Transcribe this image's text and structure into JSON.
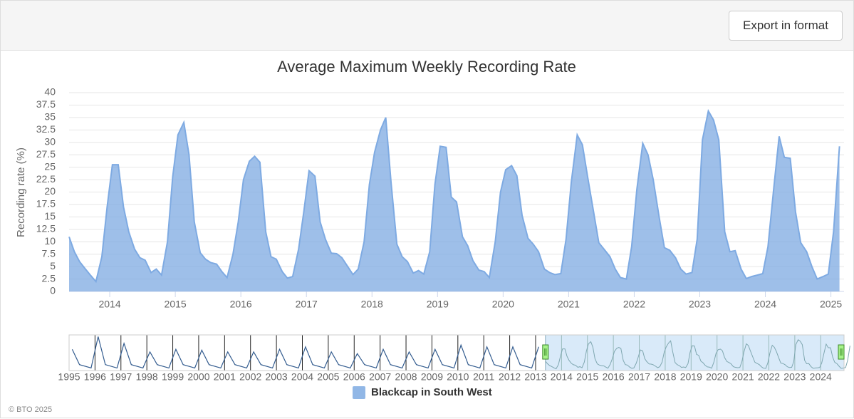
{
  "toolbar": {
    "button": "Export in format"
  },
  "chart_data": [
    {
      "type": "area",
      "title": "Average Maximum Weekly Recording Rate",
      "y_label": "Recording rate (%)",
      "x": [
        2013.38,
        2013.46,
        2013.54,
        2013.63,
        2013.71,
        2013.79,
        2013.88,
        2013.96,
        2014.04,
        2014.13,
        2014.21,
        2014.29,
        2014.38,
        2014.46,
        2014.54,
        2014.63,
        2014.71,
        2014.79,
        2014.88,
        2014.96,
        2015.04,
        2015.13,
        2015.21,
        2015.29,
        2015.38,
        2015.46,
        2015.54,
        2015.63,
        2015.71,
        2015.79,
        2015.88,
        2015.96,
        2016.04,
        2016.13,
        2016.21,
        2016.29,
        2016.38,
        2016.46,
        2016.54,
        2016.63,
        2016.71,
        2016.79,
        2016.88,
        2016.96,
        2017.04,
        2017.13,
        2017.21,
        2017.29,
        2017.38,
        2017.46,
        2017.54,
        2017.63,
        2017.71,
        2017.79,
        2017.88,
        2017.96,
        2018.04,
        2018.13,
        2018.21,
        2018.29,
        2018.38,
        2018.46,
        2018.54,
        2018.63,
        2018.71,
        2018.79,
        2018.88,
        2018.96,
        2019.04,
        2019.13,
        2019.21,
        2019.29,
        2019.38,
        2019.46,
        2019.54,
        2019.63,
        2019.71,
        2019.79,
        2019.88,
        2019.96,
        2020.04,
        2020.13,
        2020.21,
        2020.29,
        2020.38,
        2020.46,
        2020.54,
        2020.63,
        2020.71,
        2020.79,
        2020.88,
        2020.96,
        2021.04,
        2021.13,
        2021.21,
        2021.29,
        2021.38,
        2021.46,
        2021.54,
        2021.63,
        2021.71,
        2021.79,
        2021.88,
        2021.96,
        2022.04,
        2022.13,
        2022.21,
        2022.29,
        2022.38,
        2022.46,
        2022.54,
        2022.63,
        2022.71,
        2022.79,
        2022.88,
        2022.96,
        2023.04,
        2023.13,
        2023.21,
        2023.29,
        2023.38,
        2023.46,
        2023.54,
        2023.63,
        2023.71,
        2023.79,
        2023.88,
        2023.96,
        2024.04,
        2024.13,
        2024.21,
        2024.29,
        2024.38,
        2024.46,
        2024.54,
        2024.63,
        2024.71,
        2024.79,
        2024.88,
        2024.96,
        2025.04,
        2025.13
      ],
      "series": [
        {
          "name": "Blackcap in South West",
          "color": "#7eaae2",
          "values": [
            11,
            8,
            6,
            4.5,
            3.2,
            2,
            7,
            17,
            25.5,
            25.5,
            17,
            12,
            8.5,
            6.8,
            6.3,
            3.8,
            4.5,
            3.3,
            10,
            23,
            31.5,
            34,
            27.5,
            14,
            7.8,
            6.5,
            5.8,
            5.5,
            4,
            2.8,
            7.5,
            14,
            22.5,
            26.2,
            27.2,
            26,
            12,
            7,
            6.5,
            4,
            2.7,
            3,
            8.5,
            16,
            24.3,
            23.2,
            14,
            10.5,
            7.7,
            7.6,
            6.8,
            5,
            3.4,
            4.5,
            10,
            21.5,
            28,
            32.5,
            35,
            22,
            9.5,
            7,
            6,
            3.7,
            4.2,
            3.5,
            8,
            21.5,
            29.2,
            29,
            19,
            18,
            11,
            9.2,
            6.2,
            4.3,
            4,
            2.8,
            10,
            20,
            24.5,
            25.3,
            23.3,
            15.3,
            10.7,
            9.5,
            8,
            4.5,
            3.8,
            3.4,
            3.6,
            10.5,
            22,
            31.5,
            29.5,
            23,
            16,
            9.8,
            8.5,
            7,
            4.5,
            2.8,
            2.5,
            9,
            20.5,
            29.8,
            27.5,
            22.5,
            15,
            8.8,
            8.3,
            6.8,
            4.5,
            3.5,
            3.8,
            10.5,
            30.5,
            36.3,
            34.5,
            30.5,
            12,
            8,
            8.2,
            4.5,
            2.6,
            3.0,
            3.3,
            3.6,
            9,
            21,
            31.2,
            27,
            26.8,
            16,
            9.8,
            8,
            5,
            2.5,
            3,
            3.5,
            12,
            29.2
          ]
        }
      ],
      "xlim": [
        2013.38,
        2025.2
      ],
      "xticks": [
        2014,
        2015,
        2016,
        2017,
        2018,
        2019,
        2020,
        2021,
        2022,
        2023,
        2024,
        2025
      ],
      "ylim": [
        0,
        40
      ],
      "yticks": [
        0,
        2.5,
        5,
        7.5,
        10,
        12.5,
        15,
        17.5,
        20,
        22.5,
        25,
        27.5,
        30,
        32.5,
        35,
        37.5,
        40
      ],
      "grid": true,
      "legend": "bottom"
    },
    {
      "type": "navigator",
      "x": [
        1995.12,
        1995.4,
        1995.85,
        1996.12,
        1996.4,
        1996.85,
        1997.12,
        1997.4,
        1997.85,
        1998.12,
        1998.4,
        1998.85,
        1999.12,
        1999.4,
        1999.85,
        2000.12,
        2000.4,
        2000.85,
        2001.12,
        2001.4,
        2001.85,
        2002.12,
        2002.4,
        2002.85,
        2003.12,
        2003.4,
        2003.85,
        2004.12,
        2004.4,
        2004.85,
        2005.12,
        2005.4,
        2005.85,
        2006.12,
        2006.4,
        2006.85,
        2007.12,
        2007.4,
        2007.85,
        2008.12,
        2008.4,
        2008.85,
        2009.12,
        2009.4,
        2009.85,
        2010.12,
        2010.4,
        2010.85,
        2011.12,
        2011.4,
        2011.85,
        2012.12,
        2012.4,
        2012.85,
        2013.12
      ],
      "values": [
        25,
        7,
        3,
        40,
        7,
        3,
        32,
        7,
        3,
        22,
        7,
        3,
        25,
        7,
        3,
        24,
        7,
        3,
        22,
        7,
        3,
        22,
        7,
        3,
        25,
        7,
        3,
        28,
        7,
        3,
        22,
        7,
        3,
        20,
        7,
        3,
        25,
        7,
        3,
        22,
        7,
        3,
        25,
        7,
        3,
        30,
        7,
        3,
        28,
        7,
        3,
        28,
        7,
        3,
        28
      ],
      "color": "#335c8f",
      "xlim": [
        1995,
        2024.9
      ],
      "xticks": [
        1995,
        1996,
        1997,
        1998,
        1999,
        2000,
        2001,
        2002,
        2003,
        2004,
        2005,
        2006,
        2007,
        2008,
        2009,
        2010,
        2011,
        2012,
        2013,
        2014,
        2015,
        2016,
        2017,
        2018,
        2019,
        2020,
        2021,
        2022,
        2023,
        2024
      ],
      "ylim": [
        0,
        42
      ],
      "selection": [
        2013.38,
        2024.9
      ]
    }
  ],
  "credit": "© BTO 2025"
}
